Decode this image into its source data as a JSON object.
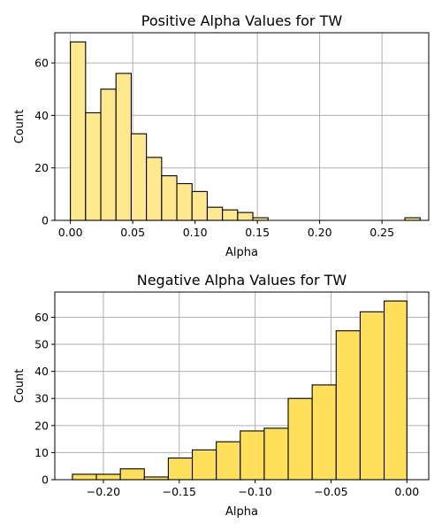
{
  "chart_data": [
    {
      "type": "bar",
      "title": "Positive Alpha Values for TW",
      "xlabel": "Alpha",
      "ylabel": "Count",
      "xlim": [
        -0.0125,
        0.2875
      ],
      "ylim": [
        0,
        71.5
      ],
      "xticks": [
        0.0,
        0.05,
        0.1,
        0.15,
        0.2,
        0.25
      ],
      "xtick_labels": [
        "0.00",
        "0.05",
        "0.10",
        "0.15",
        "0.20",
        "0.25"
      ],
      "yticks": [
        0,
        20,
        40,
        60
      ],
      "ytick_labels": [
        "0",
        "20",
        "40",
        "60"
      ],
      "grid": true,
      "bar_color": "#ffe98f",
      "bins": [
        [
          0.0,
          0.0122,
          68
        ],
        [
          0.0122,
          0.0244,
          41
        ],
        [
          0.0244,
          0.0366,
          50
        ],
        [
          0.0366,
          0.0488,
          56
        ],
        [
          0.0488,
          0.061,
          33
        ],
        [
          0.061,
          0.0732,
          24
        ],
        [
          0.0732,
          0.0854,
          17
        ],
        [
          0.0854,
          0.0976,
          14
        ],
        [
          0.0976,
          0.1098,
          11
        ],
        [
          0.1098,
          0.122,
          5
        ],
        [
          0.122,
          0.1342,
          4
        ],
        [
          0.1342,
          0.1464,
          3
        ],
        [
          0.1464,
          0.1586,
          1
        ],
        [
          0.2684,
          0.2806,
          1
        ]
      ]
    },
    {
      "type": "bar",
      "title": "Negative Alpha Values for TW",
      "xlabel": "Alpha",
      "ylabel": "Count",
      "xlim": [
        -0.232,
        0.0144
      ],
      "ylim": [
        0,
        69.3
      ],
      "xticks": [
        -0.2,
        -0.15,
        -0.1,
        -0.05,
        0.0
      ],
      "xtick_labels": [
        "−0.20",
        "−0.15",
        "−0.10",
        "−0.05",
        "0.00"
      ],
      "yticks": [
        0,
        10,
        20,
        30,
        40,
        50,
        60
      ],
      "ytick_labels": [
        "0",
        "10",
        "20",
        "30",
        "40",
        "50",
        "60"
      ],
      "grid": true,
      "bar_color": "#ffe05a",
      "bins": [
        [
          -0.2204,
          -0.2046,
          2
        ],
        [
          -0.2046,
          -0.1888,
          2
        ],
        [
          -0.1888,
          -0.173,
          4
        ],
        [
          -0.173,
          -0.1572,
          1
        ],
        [
          -0.1572,
          -0.1414,
          8
        ],
        [
          -0.1414,
          -0.1256,
          11
        ],
        [
          -0.1256,
          -0.1098,
          14
        ],
        [
          -0.1098,
          -0.094,
          18
        ],
        [
          -0.094,
          -0.0782,
          19
        ],
        [
          -0.0782,
          -0.0624,
          30
        ],
        [
          -0.0624,
          -0.0466,
          35
        ],
        [
          -0.0466,
          -0.0308,
          55
        ],
        [
          -0.0308,
          -0.015,
          62
        ],
        [
          -0.015,
          0.0,
          66
        ]
      ]
    }
  ]
}
